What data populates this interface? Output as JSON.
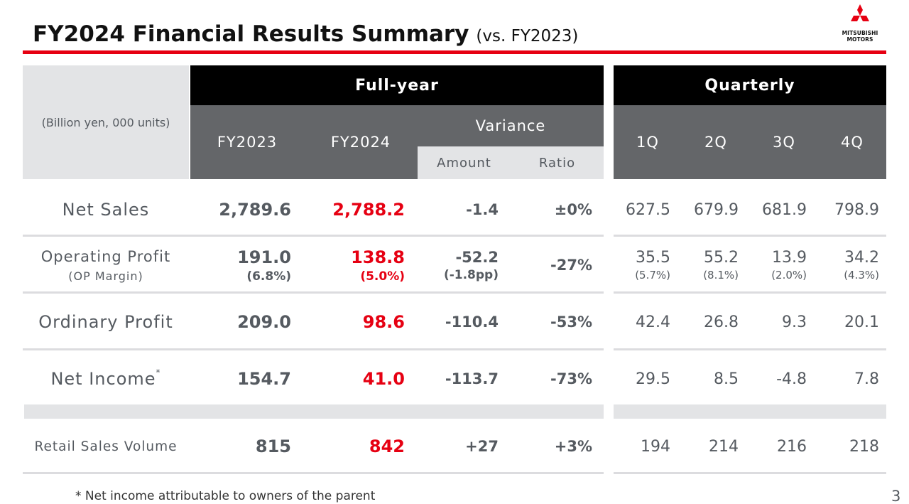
{
  "header": {
    "title": "FY2024 Financial Results Summary",
    "subtitle": "(vs. FY2023)",
    "logo_line1": "MITSUBISHI",
    "logo_line2": "MOTORS",
    "accent_color": "#e60012"
  },
  "table": {
    "units": "(Billion yen, 000 units)",
    "group_fullyear": "Full-year",
    "group_quarterly": "Quarterly",
    "col_fy2023": "FY2023",
    "col_fy2024": "FY2024",
    "col_variance": "Variance",
    "col_amount": "Amount",
    "col_ratio": "Ratio",
    "col_q1": "1Q",
    "col_q2": "2Q",
    "col_q3": "3Q",
    "col_q4": "4Q",
    "rows": [
      {
        "label": "Net Sales",
        "fy2023": "2,789.6",
        "fy2024": "2,788.2",
        "amount": "-1.4",
        "ratio": "±0%",
        "q1": "627.5",
        "q2": "679.9",
        "q3": "681.9",
        "q4": "798.9"
      },
      {
        "label": "Operating Profit",
        "sublabel": "(OP Margin)",
        "fy2023": "191.0",
        "fy2023_sub": "(6.8%)",
        "fy2024": "138.8",
        "fy2024_sub": "(5.0%)",
        "amount": "-52.2",
        "amount_sub": "(-1.8pp)",
        "ratio": "-27%",
        "q1": "35.5",
        "q1_sub": "(5.7%)",
        "q2": "55.2",
        "q2_sub": "(8.1%)",
        "q3": "13.9",
        "q3_sub": "(2.0%)",
        "q4": "34.2",
        "q4_sub": "(4.3%)"
      },
      {
        "label": "Ordinary Profit",
        "fy2023": "209.0",
        "fy2024": "98.6",
        "amount": "-110.4",
        "ratio": "-53%",
        "q1": "42.4",
        "q2": "26.8",
        "q3": "9.3",
        "q4": "20.1"
      },
      {
        "label": "Net Income",
        "label_mark": "*",
        "fy2023": "154.7",
        "fy2024": "41.0",
        "amount": "-113.7",
        "ratio": "-73%",
        "q1": "29.5",
        "q2": "8.5",
        "q3": "-4.8",
        "q4": "7.8"
      },
      {
        "label": "Retail Sales Volume",
        "fy2023": "815",
        "fy2024": "842",
        "amount": "+27",
        "ratio": "+3%",
        "q1": "194",
        "q2": "214",
        "q3": "216",
        "q4": "218"
      }
    ]
  },
  "footnote": "* Net income attributable to owners of the parent",
  "page_number": "3"
}
